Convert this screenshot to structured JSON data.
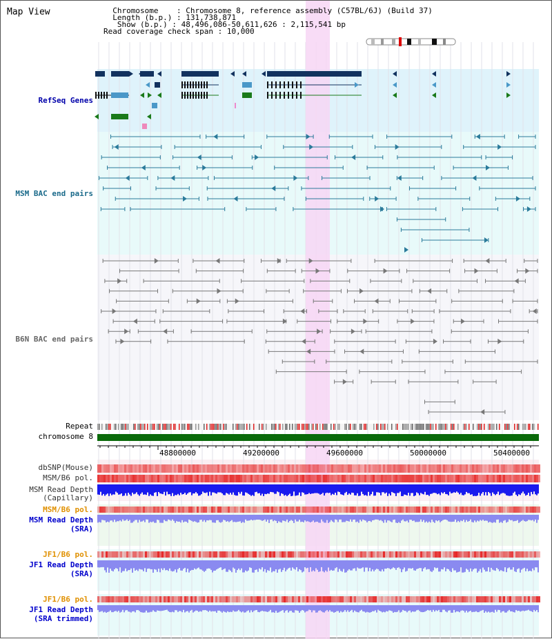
{
  "app": {
    "title": "Map View"
  },
  "info": {
    "chromosome_label": "Chromosome",
    "chromosome_value": "Chromosome 8, reference assembly (C57BL/6J) (Build 37)",
    "length_label": "Length (b.p.)",
    "length_value": "131,738,871",
    "show_label": "Show (b.p.)",
    "show_value": "48,496,086-50,611,626 : 2,115,541 bp",
    "span_label": "Read coverage check span",
    "span_value": "10,000"
  },
  "tracks": {
    "refseq": "RefSeq Genes",
    "msm_bac": "MSM BAC end pairs",
    "b6n_bac": "B6N BAC end pairs",
    "repeat": "Repeat",
    "chromosome": "chromosome 8",
    "dbsnp": "dbSNP(Mouse)",
    "msm_b6_pol": "MSM/B6 pol.",
    "msm_depth_cap_1": "MSM Read Depth",
    "msm_depth_cap_2": "(Capillary)",
    "msm_b6_pol_2": "MSM/B6 pol.",
    "msm_depth_sra_1": "MSM Read Depth",
    "msm_depth_sra_2": "(SRA)",
    "jf1_b6_pol": "JF1/B6 pol.",
    "jf1_depth_sra_1": "JF1 Read Depth",
    "jf1_depth_sra_2": "(SRA)",
    "jf1_b6_pol_2": "JF1/B6 pol.",
    "jf1_depth_trim_1": "JF1 Read Depth",
    "jf1_depth_trim_2": "(SRA trimmed)"
  },
  "axis": {
    "ticks": [
      "48800000",
      "49200000",
      "49600000",
      "50000000",
      "50400000"
    ]
  },
  "colors": {
    "refseq_bg": "#dff3fb",
    "msm_bg": "#e8fafa",
    "b6n_bg": "#f6f6fa",
    "highlight": "#f7d6f4",
    "gene_navy": "#12325e",
    "gene_blue": "#4a98c8",
    "gene_green": "#1a7a1a",
    "msm_line": "#2a7a9a",
    "b6n_line": "#777777",
    "chromosome": "#0a6a0a",
    "snp": "#f07070",
    "depth_cap": "#1a1aee",
    "depth_sra": "#8a8af0",
    "pol_msm": "#ee7a7a",
    "label_orange": "#e09000",
    "label_blue": "#0000cc",
    "label_teal": "#1a6a8a"
  }
}
